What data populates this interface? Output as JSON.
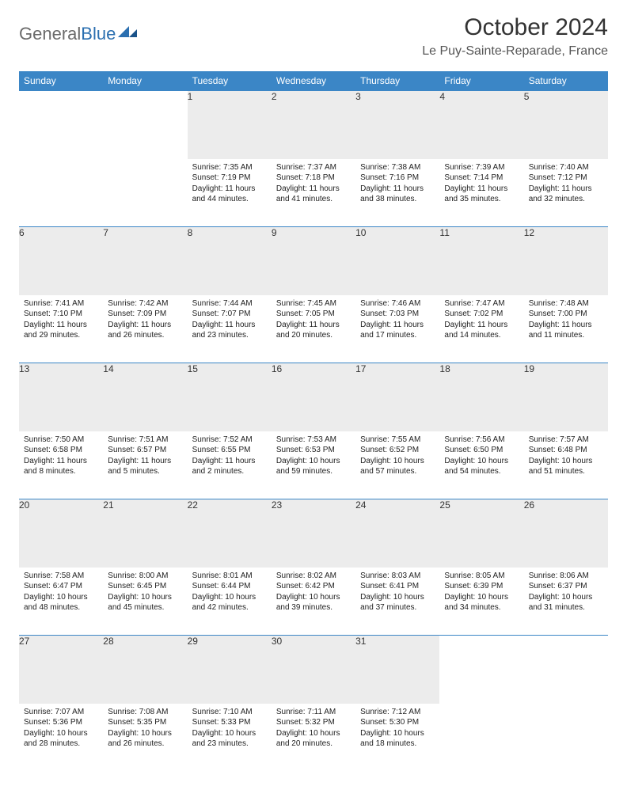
{
  "brand": {
    "general": "General",
    "blue": "Blue"
  },
  "title": "October 2024",
  "location": "Le Puy-Sainte-Reparade, France",
  "colors": {
    "header_bg": "#3b86c6",
    "header_text": "#ffffff",
    "daynum_bg": "#ececec",
    "border": "#3b86c6",
    "logo_gray": "#6a6a6a",
    "logo_blue": "#2b6fb0"
  },
  "weekdays": [
    "Sunday",
    "Monday",
    "Tuesday",
    "Wednesday",
    "Thursday",
    "Friday",
    "Saturday"
  ],
  "weeks": [
    [
      null,
      null,
      {
        "n": "1",
        "sr": "7:35 AM",
        "ss": "7:19 PM",
        "dl": "11 hours and 44 minutes."
      },
      {
        "n": "2",
        "sr": "7:37 AM",
        "ss": "7:18 PM",
        "dl": "11 hours and 41 minutes."
      },
      {
        "n": "3",
        "sr": "7:38 AM",
        "ss": "7:16 PM",
        "dl": "11 hours and 38 minutes."
      },
      {
        "n": "4",
        "sr": "7:39 AM",
        "ss": "7:14 PM",
        "dl": "11 hours and 35 minutes."
      },
      {
        "n": "5",
        "sr": "7:40 AM",
        "ss": "7:12 PM",
        "dl": "11 hours and 32 minutes."
      }
    ],
    [
      {
        "n": "6",
        "sr": "7:41 AM",
        "ss": "7:10 PM",
        "dl": "11 hours and 29 minutes."
      },
      {
        "n": "7",
        "sr": "7:42 AM",
        "ss": "7:09 PM",
        "dl": "11 hours and 26 minutes."
      },
      {
        "n": "8",
        "sr": "7:44 AM",
        "ss": "7:07 PM",
        "dl": "11 hours and 23 minutes."
      },
      {
        "n": "9",
        "sr": "7:45 AM",
        "ss": "7:05 PM",
        "dl": "11 hours and 20 minutes."
      },
      {
        "n": "10",
        "sr": "7:46 AM",
        "ss": "7:03 PM",
        "dl": "11 hours and 17 minutes."
      },
      {
        "n": "11",
        "sr": "7:47 AM",
        "ss": "7:02 PM",
        "dl": "11 hours and 14 minutes."
      },
      {
        "n": "12",
        "sr": "7:48 AM",
        "ss": "7:00 PM",
        "dl": "11 hours and 11 minutes."
      }
    ],
    [
      {
        "n": "13",
        "sr": "7:50 AM",
        "ss": "6:58 PM",
        "dl": "11 hours and 8 minutes."
      },
      {
        "n": "14",
        "sr": "7:51 AM",
        "ss": "6:57 PM",
        "dl": "11 hours and 5 minutes."
      },
      {
        "n": "15",
        "sr": "7:52 AM",
        "ss": "6:55 PM",
        "dl": "11 hours and 2 minutes."
      },
      {
        "n": "16",
        "sr": "7:53 AM",
        "ss": "6:53 PM",
        "dl": "10 hours and 59 minutes."
      },
      {
        "n": "17",
        "sr": "7:55 AM",
        "ss": "6:52 PM",
        "dl": "10 hours and 57 minutes."
      },
      {
        "n": "18",
        "sr": "7:56 AM",
        "ss": "6:50 PM",
        "dl": "10 hours and 54 minutes."
      },
      {
        "n": "19",
        "sr": "7:57 AM",
        "ss": "6:48 PM",
        "dl": "10 hours and 51 minutes."
      }
    ],
    [
      {
        "n": "20",
        "sr": "7:58 AM",
        "ss": "6:47 PM",
        "dl": "10 hours and 48 minutes."
      },
      {
        "n": "21",
        "sr": "8:00 AM",
        "ss": "6:45 PM",
        "dl": "10 hours and 45 minutes."
      },
      {
        "n": "22",
        "sr": "8:01 AM",
        "ss": "6:44 PM",
        "dl": "10 hours and 42 minutes."
      },
      {
        "n": "23",
        "sr": "8:02 AM",
        "ss": "6:42 PM",
        "dl": "10 hours and 39 minutes."
      },
      {
        "n": "24",
        "sr": "8:03 AM",
        "ss": "6:41 PM",
        "dl": "10 hours and 37 minutes."
      },
      {
        "n": "25",
        "sr": "8:05 AM",
        "ss": "6:39 PM",
        "dl": "10 hours and 34 minutes."
      },
      {
        "n": "26",
        "sr": "8:06 AM",
        "ss": "6:37 PM",
        "dl": "10 hours and 31 minutes."
      }
    ],
    [
      {
        "n": "27",
        "sr": "7:07 AM",
        "ss": "5:36 PM",
        "dl": "10 hours and 28 minutes."
      },
      {
        "n": "28",
        "sr": "7:08 AM",
        "ss": "5:35 PM",
        "dl": "10 hours and 26 minutes."
      },
      {
        "n": "29",
        "sr": "7:10 AM",
        "ss": "5:33 PM",
        "dl": "10 hours and 23 minutes."
      },
      {
        "n": "30",
        "sr": "7:11 AM",
        "ss": "5:32 PM",
        "dl": "10 hours and 20 minutes."
      },
      {
        "n": "31",
        "sr": "7:12 AM",
        "ss": "5:30 PM",
        "dl": "10 hours and 18 minutes."
      },
      null,
      null
    ]
  ],
  "labels": {
    "sunrise": "Sunrise:",
    "sunset": "Sunset:",
    "daylight": "Daylight:"
  }
}
